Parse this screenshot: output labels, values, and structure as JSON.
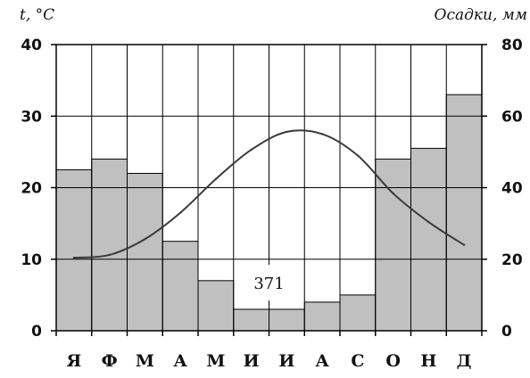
{
  "chart_data": {
    "type": "bar",
    "categories": [
      "Я",
      "Ф",
      "М",
      "А",
      "М",
      "И",
      "И",
      "А",
      "С",
      "О",
      "Н",
      "Д"
    ],
    "series": [
      {
        "type": "bar",
        "axis": "right",
        "values": [
          45,
          48,
          44,
          25,
          14,
          6,
          6,
          8,
          10,
          48,
          51,
          66
        ]
      },
      {
        "type": "line",
        "axis": "left",
        "values": [
          10.2,
          10.6,
          12.8,
          16.5,
          21.2,
          25.3,
          27.8,
          27.5,
          24.5,
          19.2,
          15.2,
          12.0
        ]
      }
    ],
    "left_axis": {
      "label": "t, °C",
      "ylim": [
        0,
        40
      ],
      "ticks": [
        "0",
        "10",
        "20",
        "30",
        "40"
      ]
    },
    "right_axis": {
      "label": "Осадки, мм",
      "ylim": [
        0,
        80
      ],
      "ticks": [
        "0",
        "20",
        "40",
        "60",
        "80"
      ]
    },
    "annotation": "371",
    "grid": true,
    "colors": {
      "bar": "#c0c0c0",
      "line": "#3a3a3a",
      "grid": "#000000"
    }
  }
}
